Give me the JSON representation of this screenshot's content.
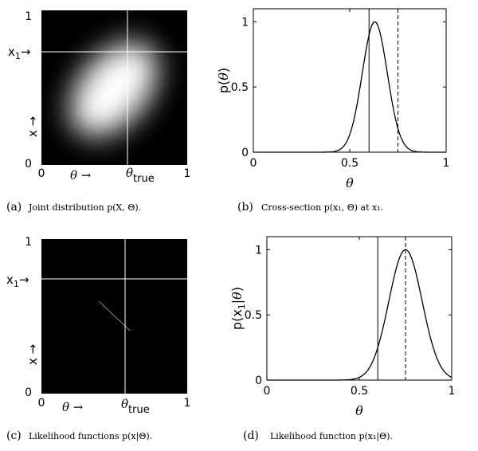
{
  "figure": {
    "panels": [
      {
        "id": "a",
        "caption_letter": "(a)",
        "caption_text": "Joint distribution p(X, Θ).",
        "heatmap": "joint"
      },
      {
        "id": "b",
        "caption_letter": "(b)",
        "caption_text": "Cross-section p(x₁, Θ) at x₁."
      },
      {
        "id": "c",
        "caption_letter": "(c)",
        "caption_text": "Likelihood functions p(x|Θ).",
        "heatmap": "likelihood"
      },
      {
        "id": "d",
        "caption_letter": "(d)",
        "caption_text": "Likelihood function p(x₁|Θ)."
      }
    ],
    "heatmap_labels": {
      "x_arrow_label": "θ →",
      "y_arrow_label": "x →",
      "x1_marker": "x₁ →",
      "theta_true_marker": "θtrue",
      "tick_0": "0",
      "tick_1": "1"
    }
  },
  "chart_data": [
    {
      "panel": "a",
      "type": "heatmap",
      "description_of_values": "joint density, bright along diagonal",
      "xlim": [
        0,
        1
      ],
      "ylim": [
        0,
        1
      ],
      "x1_line": 0.75,
      "theta_true_line": 0.6,
      "xticks": [
        "0",
        "1"
      ],
      "yticks": [
        "0",
        "1"
      ]
    },
    {
      "panel": "b",
      "type": "line",
      "xlabel": "θ",
      "ylabel": "p(θ)",
      "xlim": [
        0,
        1
      ],
      "ylim": [
        0,
        1.1
      ],
      "xticks": [
        0,
        0.5,
        1
      ],
      "xtick_labels": [
        "0",
        "0.5",
        "1"
      ],
      "yticks": [
        0,
        0.5,
        1
      ],
      "ytick_labels": [
        "0",
        "0.5",
        "1"
      ],
      "curve": {
        "shape": "gaussian",
        "mean": 0.63,
        "sd": 0.065,
        "peak": 1
      },
      "vlines": [
        {
          "x": 0.6,
          "style": "solid"
        },
        {
          "x": 0.75,
          "style": "dashed"
        }
      ]
    },
    {
      "panel": "c",
      "type": "heatmap",
      "description_of_values": "likelihood band along diagonal",
      "xlim": [
        0,
        1
      ],
      "ylim": [
        0,
        1
      ],
      "x1_line": 0.75,
      "theta_true_line": 0.6,
      "xticks": [
        "0",
        "1"
      ],
      "yticks": [
        "0",
        "1"
      ]
    },
    {
      "panel": "d",
      "type": "line",
      "xlabel": "θ",
      "ylabel": "p(x₁|θ)",
      "xlim": [
        0,
        1
      ],
      "ylim": [
        0,
        1.1
      ],
      "xticks": [
        0,
        0.5,
        1
      ],
      "xtick_labels": [
        "0",
        "0.5",
        "1"
      ],
      "yticks": [
        0,
        0.5,
        1
      ],
      "ytick_labels": [
        "0",
        "0.5",
        "1"
      ],
      "curve": {
        "shape": "gaussian",
        "mean": 0.75,
        "sd": 0.09,
        "peak": 1
      },
      "vlines": [
        {
          "x": 0.6,
          "style": "solid"
        },
        {
          "x": 0.75,
          "style": "dashed"
        }
      ]
    }
  ]
}
